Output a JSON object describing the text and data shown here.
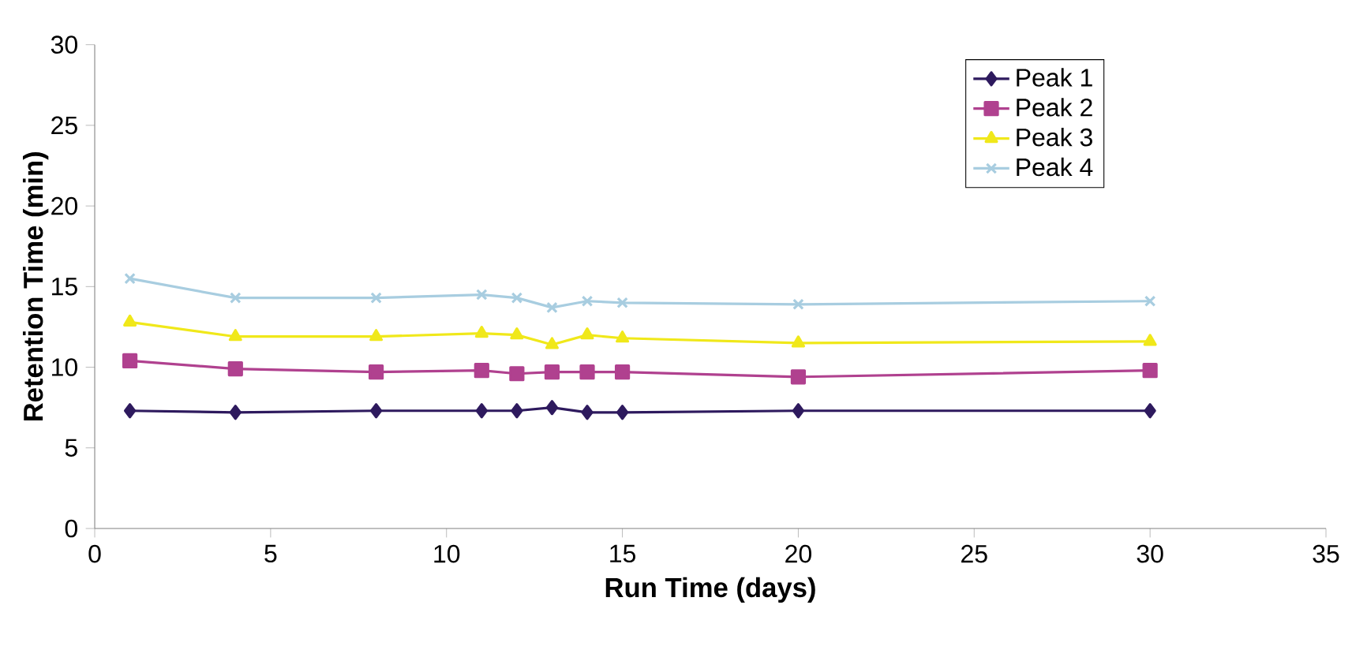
{
  "chart_data": {
    "type": "line",
    "xlabel": "Run Time (days)",
    "ylabel": "Retention Time (min)",
    "x": [
      1,
      4,
      8,
      11,
      12,
      13,
      14,
      15,
      20,
      30
    ],
    "series": [
      {
        "name": "Peak 1",
        "color": "#2e1a5e",
        "marker": "diamond",
        "values": [
          7.3,
          7.2,
          7.3,
          7.3,
          7.3,
          7.5,
          7.2,
          7.2,
          7.3,
          7.3
        ]
      },
      {
        "name": "Peak 2",
        "color": "#b0418f",
        "marker": "square",
        "values": [
          10.4,
          9.9,
          9.7,
          9.8,
          9.6,
          9.7,
          9.7,
          9.7,
          9.4,
          9.8
        ]
      },
      {
        "name": "Peak 3",
        "color": "#f0e81a",
        "marker": "triangle",
        "values": [
          12.8,
          11.9,
          11.9,
          12.1,
          12.0,
          11.4,
          12.0,
          11.8,
          11.5,
          11.6
        ]
      },
      {
        "name": "Peak 4",
        "color": "#a8cde0",
        "marker": "cross",
        "values": [
          15.5,
          14.3,
          14.3,
          14.5,
          14.3,
          13.7,
          14.1,
          14.0,
          13.9,
          14.1
        ]
      }
    ],
    "xlim": [
      0,
      35
    ],
    "xticks": [
      0,
      5,
      10,
      15,
      20,
      25,
      30,
      35
    ],
    "ylim": [
      0,
      30
    ],
    "yticks": [
      0,
      5,
      10,
      15,
      20,
      25,
      30
    ],
    "grid": false,
    "legend": "top right",
    "line_style": "solid"
  }
}
